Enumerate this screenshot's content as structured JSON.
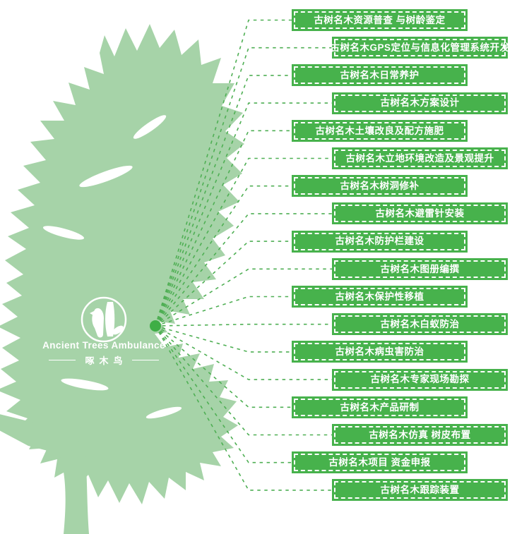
{
  "logo": {
    "name_en": "Ancient Trees Ambulance",
    "name_cn": "啄木鸟",
    "icon": "woodpecker-icon"
  },
  "colors": {
    "banner_green": "#47B24C",
    "line_green": "#4FAF54",
    "tree_green": "#A6D3A8",
    "hub_green": "#3FAE46",
    "text_white": "#FFFFFF"
  },
  "services": [
    {
      "label": "古树名木资源普查 与树龄鉴定"
    },
    {
      "label": "古树名木GPS定位与信息化管理系统开发"
    },
    {
      "label": "古树名木日常养护"
    },
    {
      "label": "古树名木方案设计"
    },
    {
      "label": "古树名木土壤改良及配方施肥"
    },
    {
      "label": "古树名木立地环境改造及景观提升"
    },
    {
      "label": "古树名木树洞修补"
    },
    {
      "label": "古树名木避雷针安装"
    },
    {
      "label": "古树名木防护栏建设"
    },
    {
      "label": "古树名木图册编撰"
    },
    {
      "label": "古树名木保护性移植"
    },
    {
      "label": "古树名木白蚁防治"
    },
    {
      "label": "古树名木病虫害防治"
    },
    {
      "label": "古树名木专家现场勘探"
    },
    {
      "label": "古树名木产品研制"
    },
    {
      "label": "古树名木仿真 树皮布置"
    },
    {
      "label": "古树名木项目 资金申报"
    },
    {
      "label": "古树名木跟踪装置"
    }
  ]
}
